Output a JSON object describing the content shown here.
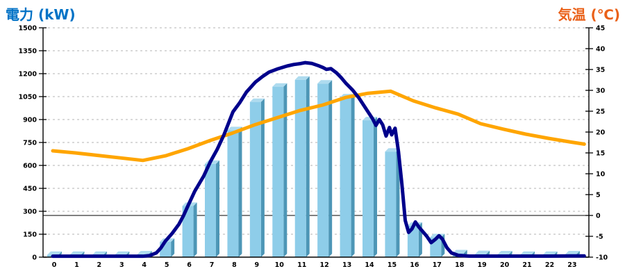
{
  "left_axis": {
    "title": "電力 (kW)",
    "title_color": "#0072C6",
    "min": 0,
    "max": 1500,
    "tick_step": 150,
    "ticks": [
      "1500",
      "1350",
      "1200",
      "1050",
      "900",
      "750",
      "600",
      "450",
      "300",
      "150",
      "0"
    ]
  },
  "right_axis": {
    "title": "気温 (℃)",
    "title_color": "#EA6119",
    "min": -10,
    "max": 45,
    "tick_step": 5,
    "ticks": [
      "45",
      "40",
      "35",
      "30",
      "25",
      "20",
      "15",
      "10",
      "5",
      "0",
      "-5",
      "-10"
    ]
  },
  "x_axis": {
    "labels": [
      "0",
      "1",
      "2",
      "3",
      "4",
      "5",
      "6",
      "7",
      "8",
      "9",
      "10",
      "11",
      "12",
      "13",
      "14",
      "15",
      "16",
      "17",
      "18",
      "19",
      "20",
      "21",
      "22",
      "23"
    ]
  },
  "chart_data": {
    "type": "combo",
    "grid": {
      "horizontal": "dashed",
      "color": "#B3B3B3"
    },
    "zero_temp_solid_line_at_right_value": 0,
    "ylim_left": [
      0,
      1500
    ],
    "ylim_right": [
      -10,
      45
    ],
    "series": [
      {
        "name": "power-bars",
        "type": "bar",
        "axis": "left",
        "style_3d": true,
        "colors": {
          "front": "#8ECDE9",
          "side": "#4D96B6",
          "top": "#AEDBEF"
        },
        "categories": [
          0,
          1,
          2,
          3,
          4,
          5,
          6,
          7,
          8,
          9,
          10,
          11,
          12,
          13,
          14,
          15,
          16,
          17,
          18,
          19,
          20,
          21,
          22,
          23
        ],
        "values": [
          15,
          15,
          15,
          15,
          18,
          100,
          335,
          610,
          830,
          1015,
          1115,
          1160,
          1135,
          1045,
          895,
          690,
          205,
          130,
          25,
          20,
          18,
          15,
          15,
          18
        ]
      },
      {
        "name": "power-line",
        "type": "line",
        "axis": "left",
        "color": "#00008B",
        "stroke_width": 5,
        "points": [
          [
            0,
            6
          ],
          [
            0.5,
            6
          ],
          [
            1,
            6
          ],
          [
            1.5,
            6
          ],
          [
            2,
            6
          ],
          [
            2.5,
            6
          ],
          [
            3,
            6
          ],
          [
            3.5,
            6
          ],
          [
            4,
            6
          ],
          [
            4.3,
            10
          ],
          [
            4.6,
            28
          ],
          [
            4.8,
            60
          ],
          [
            5,
            105
          ],
          [
            5.3,
            155
          ],
          [
            5.6,
            215
          ],
          [
            5.8,
            270
          ],
          [
            6,
            335
          ],
          [
            6.3,
            430
          ],
          [
            6.7,
            530
          ],
          [
            7,
            625
          ],
          [
            7.3,
            705
          ],
          [
            7.6,
            800
          ],
          [
            8,
            950
          ],
          [
            8.3,
            1010
          ],
          [
            8.6,
            1080
          ],
          [
            9,
            1145
          ],
          [
            9.3,
            1180
          ],
          [
            9.6,
            1210
          ],
          [
            10,
            1232
          ],
          [
            10.4,
            1250
          ],
          [
            10.7,
            1260
          ],
          [
            11,
            1266
          ],
          [
            11.2,
            1272
          ],
          [
            11.5,
            1267
          ],
          [
            11.8,
            1252
          ],
          [
            12,
            1240
          ],
          [
            12.15,
            1228
          ],
          [
            12.35,
            1233
          ],
          [
            12.6,
            1205
          ],
          [
            12.8,
            1175
          ],
          [
            13,
            1140
          ],
          [
            13.3,
            1095
          ],
          [
            13.6,
            1040
          ],
          [
            14,
            950
          ],
          [
            14.2,
            905
          ],
          [
            14.35,
            862
          ],
          [
            14.5,
            900
          ],
          [
            14.65,
            865
          ],
          [
            14.8,
            792
          ],
          [
            14.95,
            848
          ],
          [
            15.05,
            800
          ],
          [
            15.2,
            843
          ],
          [
            15.35,
            690
          ],
          [
            15.5,
            480
          ],
          [
            15.65,
            240
          ],
          [
            15.8,
            162
          ],
          [
            15.95,
            185
          ],
          [
            16.1,
            230
          ],
          [
            16.25,
            198
          ],
          [
            16.4,
            172
          ],
          [
            16.6,
            138
          ],
          [
            16.8,
            95
          ],
          [
            17,
            118
          ],
          [
            17.15,
            140
          ],
          [
            17.3,
            118
          ],
          [
            17.5,
            62
          ],
          [
            17.7,
            28
          ],
          [
            18,
            12
          ],
          [
            18.5,
            7
          ],
          [
            19,
            7
          ],
          [
            20,
            7
          ],
          [
            21,
            7
          ],
          [
            22,
            7
          ],
          [
            23,
            8
          ],
          [
            23.6,
            8
          ]
        ]
      },
      {
        "name": "temperature-line",
        "type": "line",
        "axis": "right",
        "color": "#FFA500",
        "stroke_width": 5,
        "x": [
          0,
          1,
          2,
          3,
          4,
          5,
          6,
          7,
          8,
          9,
          10,
          11,
          12,
          13,
          14,
          15,
          16,
          17,
          18,
          19,
          20,
          21,
          22,
          23,
          23.6
        ],
        "values": [
          15.5,
          15.0,
          14.4,
          13.8,
          13.2,
          14.3,
          16.0,
          18.0,
          19.8,
          21.8,
          23.5,
          25.2,
          26.5,
          28.3,
          29.3,
          29.8,
          27.5,
          25.8,
          24.3,
          22.0,
          20.7,
          19.5,
          18.5,
          17.6,
          17.1
        ]
      }
    ]
  }
}
